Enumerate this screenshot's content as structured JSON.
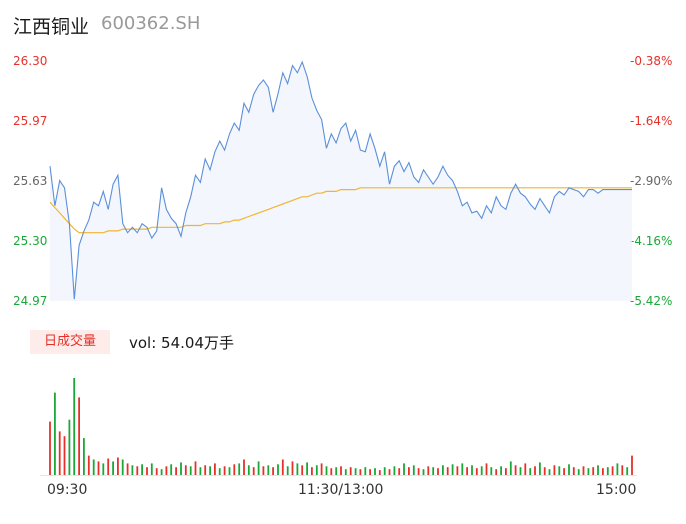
{
  "header": {
    "name": "江西铜业",
    "code": "600362.SH"
  },
  "colors": {
    "price_line": "#5b8fd9",
    "avg_line": "#f4b430",
    "up": "#e8302a",
    "down": "#19a838",
    "tick_gray": "#666666"
  },
  "vol_tab": {
    "label": "日成交量"
  },
  "vol_info": {
    "text": "vol: 54.04万手"
  },
  "chart_data": [
    {
      "type": "line",
      "name": "intraday-price",
      "y_ticks_left": [
        "26.30",
        "25.97",
        "25.63",
        "25.30",
        "24.97"
      ],
      "y_ticks_right": [
        "-0.38%",
        "-1.64%",
        "-2.90%",
        "-4.16%",
        "-5.42%"
      ],
      "ylim": [
        24.97,
        26.3
      ],
      "prev_close": 26.4,
      "x_ticks": [
        "09:30",
        "11:30/13:00",
        "15:00"
      ],
      "x_minutes": [
        0,
        2,
        4,
        6,
        8,
        10,
        12,
        14,
        16,
        18,
        20,
        22,
        24,
        26,
        28,
        30,
        32,
        34,
        36,
        38,
        40,
        42,
        44,
        46,
        48,
        50,
        52,
        54,
        56,
        58,
        60,
        62,
        64,
        66,
        68,
        70,
        72,
        74,
        76,
        78,
        80,
        82,
        84,
        86,
        88,
        90,
        92,
        94,
        96,
        98,
        100,
        102,
        104,
        106,
        108,
        110,
        112,
        114,
        116,
        118,
        120,
        122,
        124,
        126,
        128,
        130,
        132,
        134,
        136,
        138,
        140,
        142,
        144,
        146,
        148,
        150,
        152,
        154,
        156,
        158,
        160,
        162,
        164,
        166,
        168,
        170,
        172,
        174,
        176,
        178,
        180,
        182,
        184,
        186,
        188,
        190,
        192,
        194,
        196,
        198,
        200,
        202,
        204,
        206,
        208,
        210,
        212,
        214,
        216,
        218,
        220,
        222,
        224,
        226,
        228,
        230,
        232,
        234,
        236,
        238,
        240
      ],
      "price": [
        25.72,
        25.5,
        25.64,
        25.6,
        25.4,
        24.98,
        25.28,
        25.36,
        25.42,
        25.52,
        25.5,
        25.58,
        25.48,
        25.62,
        25.67,
        25.4,
        25.35,
        25.38,
        25.35,
        25.4,
        25.38,
        25.32,
        25.36,
        25.6,
        25.48,
        25.43,
        25.4,
        25.33,
        25.46,
        25.55,
        25.67,
        25.63,
        25.76,
        25.7,
        25.8,
        25.86,
        25.81,
        25.9,
        25.96,
        25.92,
        26.07,
        26.02,
        26.12,
        26.17,
        26.2,
        26.16,
        26.02,
        26.12,
        26.24,
        26.18,
        26.28,
        26.24,
        26.3,
        26.22,
        26.1,
        26.03,
        25.98,
        25.82,
        25.9,
        25.85,
        25.93,
        25.96,
        25.86,
        25.92,
        25.81,
        25.8,
        25.9,
        25.82,
        25.72,
        25.8,
        25.62,
        25.72,
        25.75,
        25.69,
        25.74,
        25.66,
        25.63,
        25.7,
        25.66,
        25.62,
        25.66,
        25.72,
        25.67,
        25.64,
        25.58,
        25.5,
        25.52,
        25.46,
        25.47,
        25.43,
        25.5,
        25.46,
        25.55,
        25.5,
        25.48,
        25.57,
        25.62,
        25.57,
        25.55,
        25.51,
        25.48,
        25.54,
        25.5,
        25.46,
        25.55,
        25.58,
        25.56,
        25.6,
        25.59,
        25.58,
        25.55,
        25.59,
        25.59,
        25.57,
        25.59,
        25.59,
        25.59,
        25.59,
        25.59,
        25.59,
        25.59
      ],
      "avg": [
        25.52,
        25.49,
        25.46,
        25.43,
        25.4,
        25.37,
        25.35,
        25.35,
        25.35,
        25.35,
        25.35,
        25.35,
        25.36,
        25.36,
        25.36,
        25.37,
        25.37,
        25.37,
        25.37,
        25.37,
        25.37,
        25.38,
        25.38,
        25.38,
        25.38,
        25.38,
        25.38,
        25.38,
        25.39,
        25.39,
        25.39,
        25.39,
        25.4,
        25.4,
        25.4,
        25.4,
        25.41,
        25.41,
        25.42,
        25.42,
        25.43,
        25.44,
        25.45,
        25.46,
        25.47,
        25.48,
        25.49,
        25.5,
        25.51,
        25.52,
        25.53,
        25.54,
        25.55,
        25.55,
        25.56,
        25.57,
        25.57,
        25.58,
        25.58,
        25.58,
        25.59,
        25.59,
        25.59,
        25.59,
        25.6,
        25.6,
        25.6,
        25.6,
        25.6,
        25.6,
        25.6,
        25.6,
        25.6,
        25.6,
        25.6,
        25.6,
        25.6,
        25.6,
        25.6,
        25.6,
        25.6,
        25.6,
        25.6,
        25.6,
        25.6,
        25.6,
        25.6,
        25.6,
        25.6,
        25.6,
        25.6,
        25.6,
        25.6,
        25.6,
        25.6,
        25.6,
        25.6,
        25.6,
        25.6,
        25.6,
        25.6,
        25.6,
        25.6,
        25.6,
        25.6,
        25.6,
        25.6,
        25.6,
        25.6,
        25.6,
        25.6,
        25.6,
        25.6,
        25.6,
        25.6,
        25.6,
        25.6,
        25.6,
        25.6,
        25.6,
        25.6
      ]
    },
    {
      "type": "bar",
      "name": "volume",
      "ylim": [
        0,
        100
      ],
      "bars": [
        {
          "m": 0,
          "v": 55,
          "up": 1
        },
        {
          "m": 2,
          "v": 85,
          "up": 0
        },
        {
          "m": 4,
          "v": 45,
          "up": 1
        },
        {
          "m": 6,
          "v": 40,
          "up": 1
        },
        {
          "m": 8,
          "v": 57,
          "up": 0
        },
        {
          "m": 10,
          "v": 100,
          "up": 0
        },
        {
          "m": 12,
          "v": 80,
          "up": 1
        },
        {
          "m": 14,
          "v": 38,
          "up": 0
        },
        {
          "m": 16,
          "v": 20,
          "up": 1
        },
        {
          "m": 18,
          "v": 16,
          "up": 0
        },
        {
          "m": 20,
          "v": 14,
          "up": 1
        },
        {
          "m": 22,
          "v": 12,
          "up": 0
        },
        {
          "m": 24,
          "v": 17,
          "up": 1
        },
        {
          "m": 26,
          "v": 14,
          "up": 0
        },
        {
          "m": 28,
          "v": 18,
          "up": 1
        },
        {
          "m": 30,
          "v": 16,
          "up": 0
        },
        {
          "m": 32,
          "v": 12,
          "up": 1
        },
        {
          "m": 34,
          "v": 10,
          "up": 0
        },
        {
          "m": 36,
          "v": 9,
          "up": 1
        },
        {
          "m": 38,
          "v": 11,
          "up": 0
        },
        {
          "m": 40,
          "v": 8,
          "up": 1
        },
        {
          "m": 42,
          "v": 12,
          "up": 0
        },
        {
          "m": 44,
          "v": 7,
          "up": 1
        },
        {
          "m": 46,
          "v": 6,
          "up": 0
        },
        {
          "m": 48,
          "v": 9,
          "up": 1
        },
        {
          "m": 50,
          "v": 11,
          "up": 0
        },
        {
          "m": 52,
          "v": 8,
          "up": 1
        },
        {
          "m": 54,
          "v": 13,
          "up": 0
        },
        {
          "m": 56,
          "v": 10,
          "up": 1
        },
        {
          "m": 58,
          "v": 9,
          "up": 0
        },
        {
          "m": 60,
          "v": 14,
          "up": 1
        },
        {
          "m": 62,
          "v": 8,
          "up": 0
        },
        {
          "m": 64,
          "v": 10,
          "up": 1
        },
        {
          "m": 66,
          "v": 9,
          "up": 0
        },
        {
          "m": 68,
          "v": 12,
          "up": 1
        },
        {
          "m": 70,
          "v": 7,
          "up": 0
        },
        {
          "m": 72,
          "v": 9,
          "up": 1
        },
        {
          "m": 74,
          "v": 8,
          "up": 0
        },
        {
          "m": 76,
          "v": 11,
          "up": 1
        },
        {
          "m": 78,
          "v": 12,
          "up": 0
        },
        {
          "m": 80,
          "v": 16,
          "up": 1
        },
        {
          "m": 82,
          "v": 10,
          "up": 0
        },
        {
          "m": 84,
          "v": 8,
          "up": 1
        },
        {
          "m": 86,
          "v": 14,
          "up": 0
        },
        {
          "m": 88,
          "v": 9,
          "up": 1
        },
        {
          "m": 90,
          "v": 10,
          "up": 0
        },
        {
          "m": 92,
          "v": 8,
          "up": 1
        },
        {
          "m": 94,
          "v": 11,
          "up": 0
        },
        {
          "m": 96,
          "v": 16,
          "up": 1
        },
        {
          "m": 98,
          "v": 9,
          "up": 0
        },
        {
          "m": 100,
          "v": 14,
          "up": 1
        },
        {
          "m": 102,
          "v": 12,
          "up": 0
        },
        {
          "m": 104,
          "v": 10,
          "up": 1
        },
        {
          "m": 106,
          "v": 13,
          "up": 0
        },
        {
          "m": 108,
          "v": 8,
          "up": 1
        },
        {
          "m": 110,
          "v": 10,
          "up": 0
        },
        {
          "m": 112,
          "v": 12,
          "up": 1
        },
        {
          "m": 114,
          "v": 9,
          "up": 0
        },
        {
          "m": 116,
          "v": 7,
          "up": 1
        },
        {
          "m": 118,
          "v": 8,
          "up": 0
        },
        {
          "m": 120,
          "v": 9,
          "up": 1
        },
        {
          "m": 122,
          "v": 6,
          "up": 0
        },
        {
          "m": 124,
          "v": 8,
          "up": 1
        },
        {
          "m": 126,
          "v": 7,
          "up": 0
        },
        {
          "m": 128,
          "v": 6,
          "up": 1
        },
        {
          "m": 130,
          "v": 8,
          "up": 0
        },
        {
          "m": 132,
          "v": 6,
          "up": 1
        },
        {
          "m": 134,
          "v": 7,
          "up": 0
        },
        {
          "m": 136,
          "v": 5,
          "up": 1
        },
        {
          "m": 138,
          "v": 8,
          "up": 0
        },
        {
          "m": 140,
          "v": 6,
          "up": 1
        },
        {
          "m": 142,
          "v": 9,
          "up": 0
        },
        {
          "m": 144,
          "v": 7,
          "up": 1
        },
        {
          "m": 146,
          "v": 12,
          "up": 0
        },
        {
          "m": 148,
          "v": 8,
          "up": 1
        },
        {
          "m": 150,
          "v": 10,
          "up": 0
        },
        {
          "m": 152,
          "v": 7,
          "up": 1
        },
        {
          "m": 154,
          "v": 6,
          "up": 0
        },
        {
          "m": 156,
          "v": 9,
          "up": 1
        },
        {
          "m": 158,
          "v": 8,
          "up": 0
        },
        {
          "m": 160,
          "v": 7,
          "up": 1
        },
        {
          "m": 162,
          "v": 10,
          "up": 0
        },
        {
          "m": 164,
          "v": 8,
          "up": 1
        },
        {
          "m": 166,
          "v": 11,
          "up": 0
        },
        {
          "m": 168,
          "v": 9,
          "up": 1
        },
        {
          "m": 170,
          "v": 12,
          "up": 0
        },
        {
          "m": 172,
          "v": 8,
          "up": 1
        },
        {
          "m": 174,
          "v": 10,
          "up": 0
        },
        {
          "m": 176,
          "v": 7,
          "up": 1
        },
        {
          "m": 178,
          "v": 9,
          "up": 0
        },
        {
          "m": 180,
          "v": 12,
          "up": 1
        },
        {
          "m": 182,
          "v": 8,
          "up": 0
        },
        {
          "m": 184,
          "v": 6,
          "up": 1
        },
        {
          "m": 186,
          "v": 9,
          "up": 0
        },
        {
          "m": 188,
          "v": 7,
          "up": 1
        },
        {
          "m": 190,
          "v": 14,
          "up": 0
        },
        {
          "m": 192,
          "v": 10,
          "up": 1
        },
        {
          "m": 194,
          "v": 8,
          "up": 0
        },
        {
          "m": 196,
          "v": 12,
          "up": 1
        },
        {
          "m": 198,
          "v": 7,
          "up": 0
        },
        {
          "m": 200,
          "v": 9,
          "up": 1
        },
        {
          "m": 202,
          "v": 13,
          "up": 0
        },
        {
          "m": 204,
          "v": 8,
          "up": 1
        },
        {
          "m": 206,
          "v": 6,
          "up": 0
        },
        {
          "m": 208,
          "v": 10,
          "up": 1
        },
        {
          "m": 210,
          "v": 9,
          "up": 0
        },
        {
          "m": 212,
          "v": 7,
          "up": 1
        },
        {
          "m": 214,
          "v": 11,
          "up": 0
        },
        {
          "m": 216,
          "v": 8,
          "up": 1
        },
        {
          "m": 218,
          "v": 6,
          "up": 0
        },
        {
          "m": 220,
          "v": 9,
          "up": 1
        },
        {
          "m": 222,
          "v": 7,
          "up": 0
        },
        {
          "m": 224,
          "v": 8,
          "up": 1
        },
        {
          "m": 226,
          "v": 10,
          "up": 0
        },
        {
          "m": 228,
          "v": 7,
          "up": 1
        },
        {
          "m": 230,
          "v": 8,
          "up": 0
        },
        {
          "m": 232,
          "v": 9,
          "up": 1
        },
        {
          "m": 234,
          "v": 12,
          "up": 0
        },
        {
          "m": 236,
          "v": 10,
          "up": 1
        },
        {
          "m": 238,
          "v": 8,
          "up": 0
        },
        {
          "m": 240,
          "v": 20,
          "up": 1
        }
      ]
    }
  ]
}
